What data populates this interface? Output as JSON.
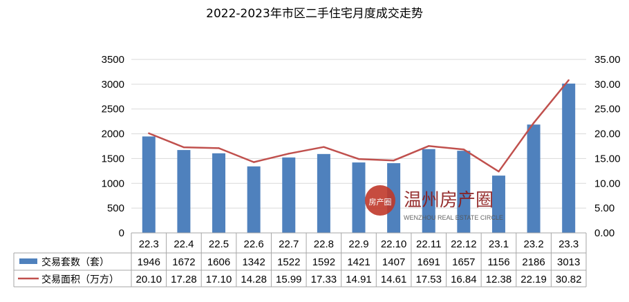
{
  "chart_data": {
    "type": "bar",
    "title": "2022-2023年市区二手住宅月度成交走势",
    "categories": [
      "22.3",
      "22.4",
      "22.5",
      "22.6",
      "22.7",
      "22.8",
      "22.9",
      "22.10",
      "22.11",
      "22.12",
      "23.1",
      "23.2",
      "23.3"
    ],
    "y_left": {
      "ylim": [
        0,
        3500
      ],
      "ticks": [
        "0",
        "500",
        "1000",
        "1500",
        "2000",
        "2500",
        "3000",
        "3500"
      ]
    },
    "y_right": {
      "ylim": [
        0,
        35
      ],
      "ticks": [
        "0.00",
        "5.00",
        "10.00",
        "15.00",
        "20.00",
        "25.00",
        "30.00",
        "35.00"
      ]
    },
    "grid": true,
    "legend_placement": "data-table",
    "series": [
      {
        "name": "交易套数（套）",
        "type": "bar",
        "axis": "left",
        "color": "#4F81BD",
        "values": [
          1946,
          1672,
          1606,
          1342,
          1522,
          1592,
          1421,
          1407,
          1691,
          1657,
          1156,
          2186,
          3013
        ],
        "labels": [
          "1946",
          "1672",
          "1606",
          "1342",
          "1522",
          "1592",
          "1421",
          "1407",
          "1691",
          "1657",
          "1156",
          "2186",
          "3013"
        ]
      },
      {
        "name": "交易面积（万方）",
        "type": "line",
        "axis": "right",
        "color": "#C0504D",
        "values": [
          20.1,
          17.28,
          17.1,
          14.28,
          15.99,
          17.33,
          14.91,
          14.61,
          17.53,
          16.84,
          12.38,
          22.19,
          30.82
        ],
        "labels": [
          "20.10",
          "17.28",
          "17.10",
          "14.28",
          "15.99",
          "17.33",
          "14.91",
          "14.61",
          "17.53",
          "16.84",
          "12.38",
          "22.19",
          "30.82"
        ]
      }
    ]
  },
  "watermark": {
    "seal_text": "房产圈",
    "brand_text": "温州房产圈",
    "sub_text": "WENZHOU REAL ESTATE CIRCLE"
  }
}
